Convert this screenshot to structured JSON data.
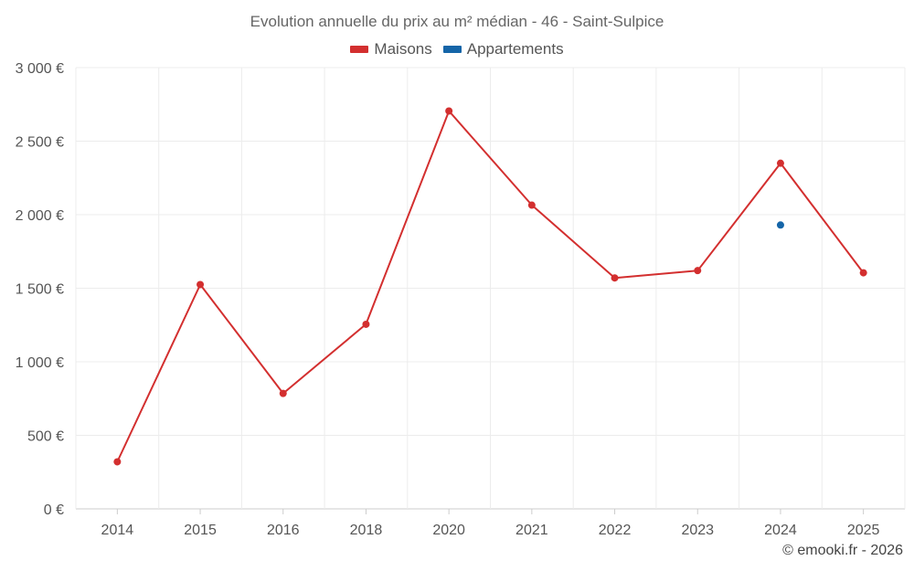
{
  "chart_data": {
    "type": "line",
    "title": "Evolution annuelle du prix au m² médian - 46 - Saint-Sulpice",
    "categories": [
      "2014",
      "2015",
      "2016",
      "2018",
      "2020",
      "2021",
      "2022",
      "2023",
      "2024",
      "2025"
    ],
    "series": [
      {
        "name": "Maisons",
        "color": "#d32f2f",
        "values": [
          320,
          1525,
          785,
          1255,
          2705,
          2065,
          1570,
          1620,
          2350,
          1605
        ]
      },
      {
        "name": "Appartements",
        "color": "#1565a8",
        "values": [
          null,
          null,
          null,
          null,
          null,
          null,
          null,
          null,
          1930,
          null
        ]
      }
    ],
    "y_ticks": [
      "0 €",
      "500 €",
      "1 000 €",
      "1 500 €",
      "2 000 €",
      "2 500 €",
      "3 000 €"
    ],
    "ylim": [
      0,
      3000
    ],
    "xlabel": "",
    "ylabel": "",
    "grid": true,
    "legend_position": "top-center"
  },
  "footer": {
    "credit": "© emooki.fr - 2026"
  }
}
